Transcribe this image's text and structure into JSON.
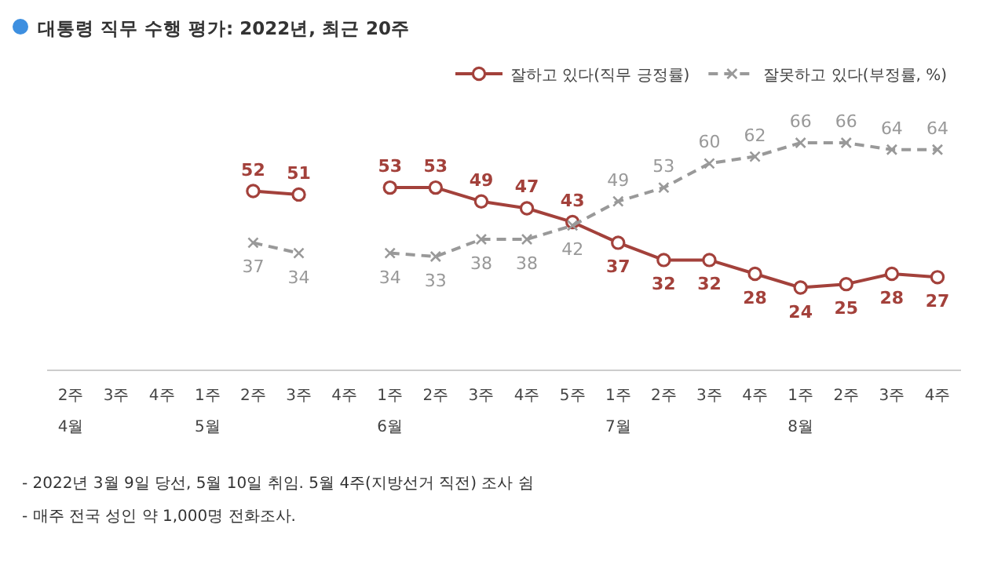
{
  "chart_data": {
    "type": "line",
    "title": "대통령 직무 수행 평가: 2022년, 최근 20주",
    "categories": [
      "2주\n4월",
      "3주",
      "4주",
      "1주\n5월",
      "2주",
      "3주",
      "4주",
      "1주\n6월",
      "2주",
      "3주",
      "4주",
      "5주",
      "1주\n7월",
      "2주",
      "3주",
      "4주",
      "1주\n8월",
      "2주",
      "3주",
      "4주"
    ],
    "series": [
      {
        "name": "잘하고 있다(직무 긍정률)",
        "color": "#a3413b",
        "marker": "circle",
        "line_style": "solid",
        "values": [
          null,
          null,
          null,
          null,
          52,
          51,
          null,
          53,
          53,
          49,
          47,
          43,
          37,
          32,
          32,
          28,
          24,
          25,
          28,
          27
        ]
      },
      {
        "name": "잘못하고 있다(부정률, %)",
        "color": "#999999",
        "marker": "cross",
        "line_style": "dashed",
        "values": [
          null,
          null,
          null,
          null,
          37,
          34,
          null,
          34,
          33,
          38,
          38,
          42,
          49,
          53,
          60,
          62,
          66,
          66,
          64,
          64
        ]
      }
    ],
    "data_labels": true,
    "legend": "top right",
    "annotations": [
      "- 2022년 3월 9일 당선, 5월 10일 취임. 5월 4주(지방선거 직전) 조사 쉼",
      "- 매주 전국 성인 약 1,000명 전화조사."
    ]
  }
}
